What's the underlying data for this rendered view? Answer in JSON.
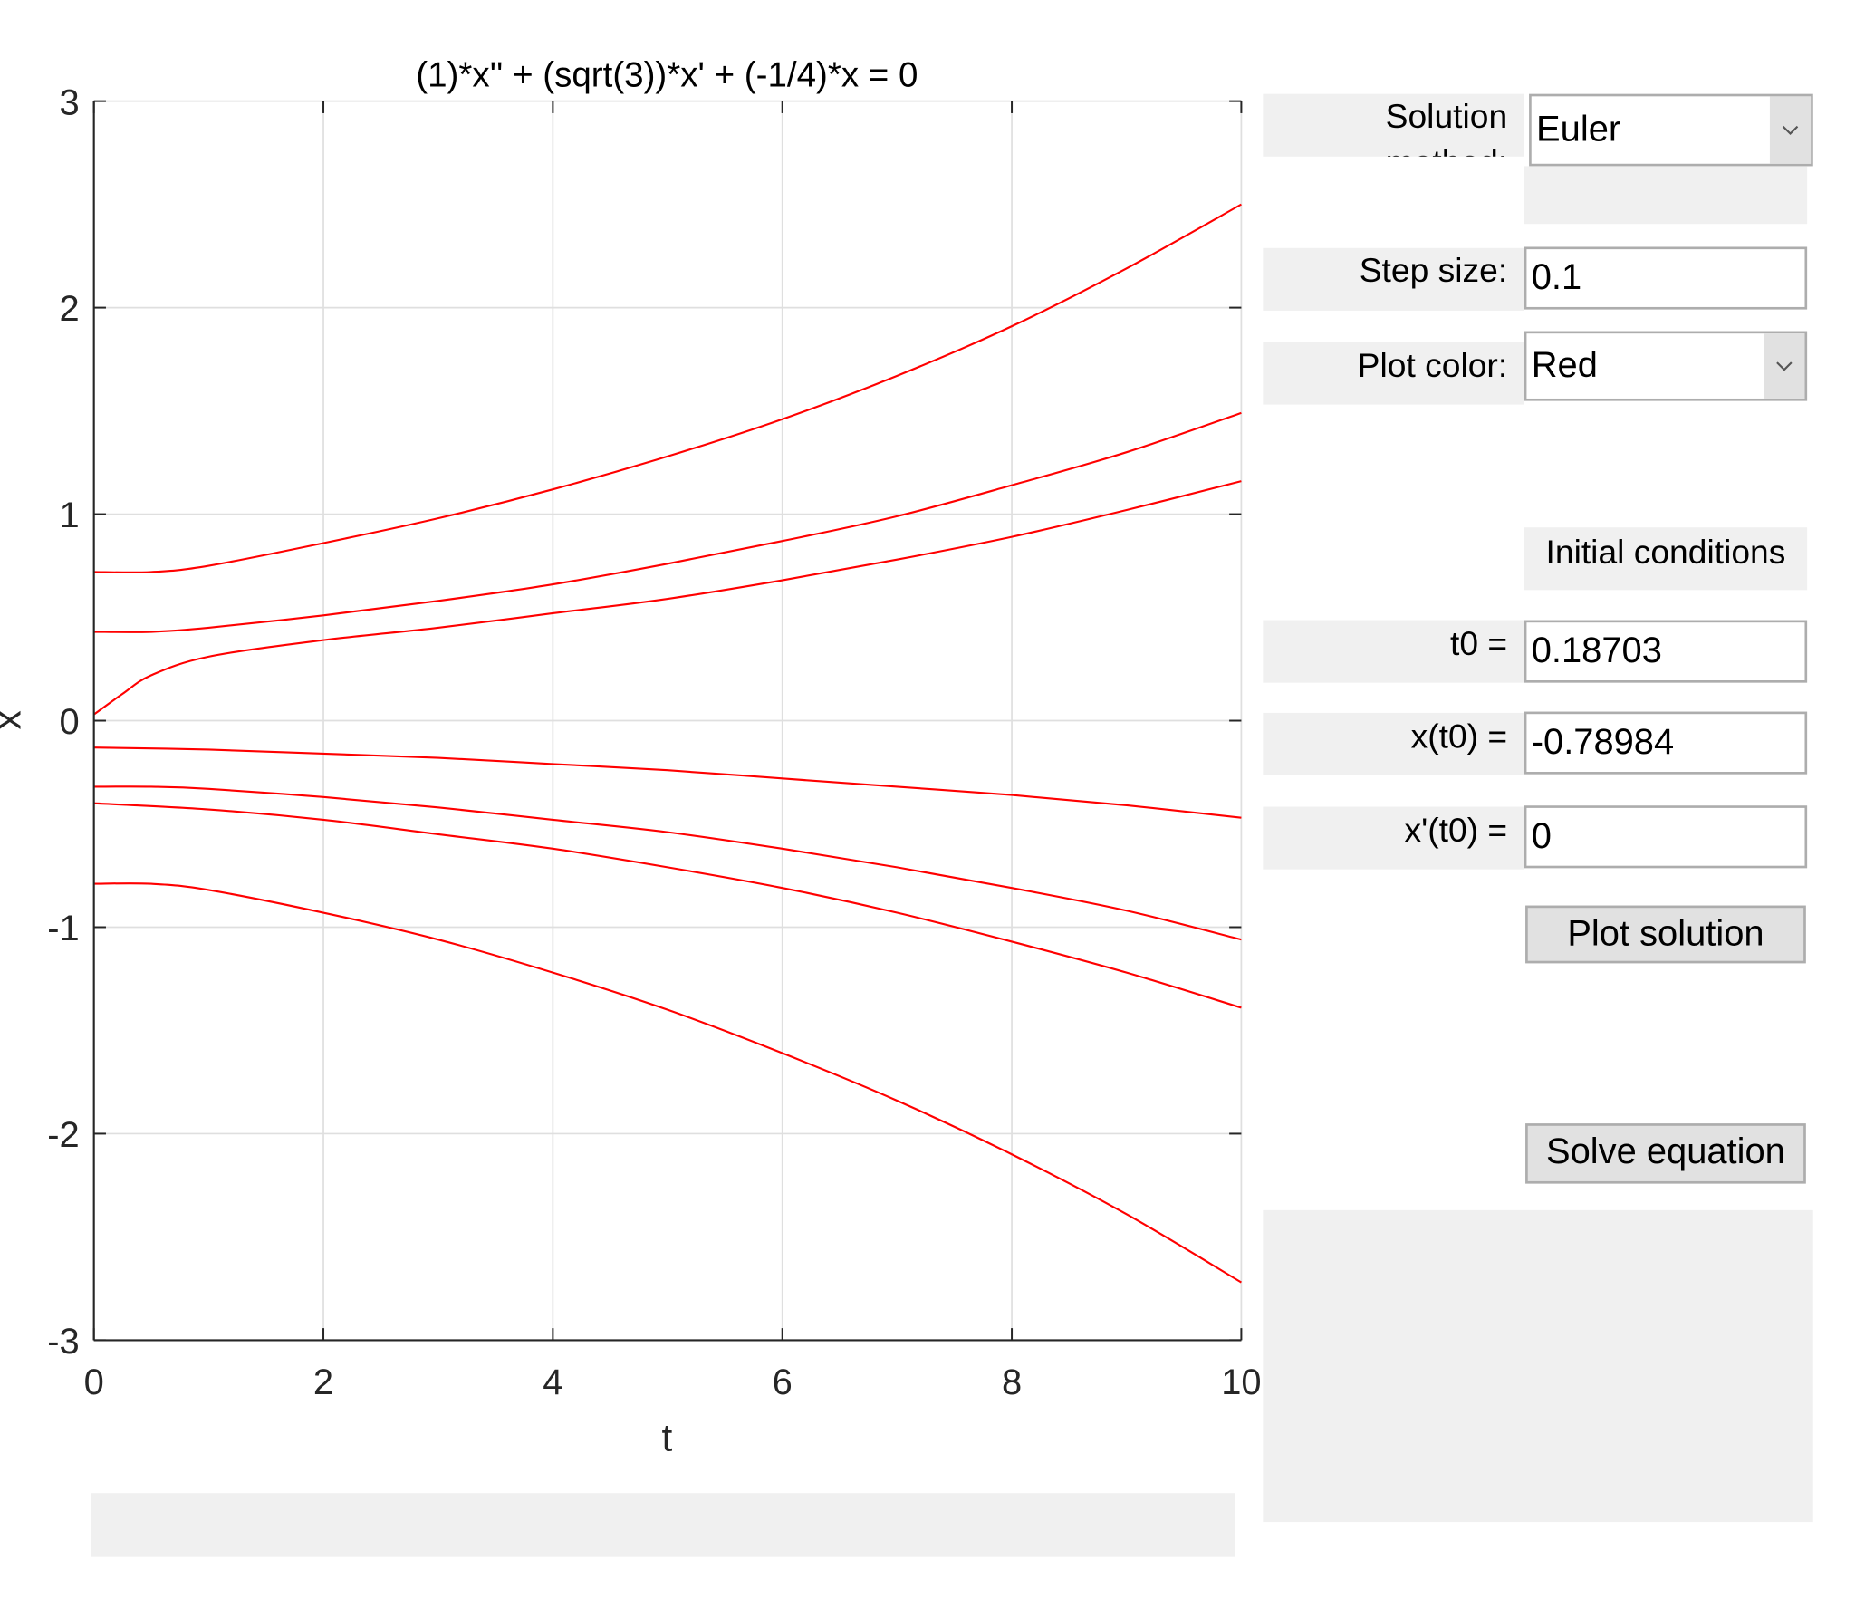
{
  "controls": {
    "solution_method_label": "Solution method:",
    "solution_method_value": "Euler",
    "step_size_label": "Step size:",
    "step_size_value": "0.1",
    "plot_color_label": "Plot color:",
    "plot_color_value": "Red",
    "initial_conditions_label": "Initial conditions",
    "t0_label": "t0 =",
    "t0_value": "0.18703",
    "x_t0_label": "x(t0) =",
    "x_t0_value": "-0.78984",
    "xp_t0_label": "x'(t0) =",
    "xp_t0_value": "0",
    "plot_button": "Plot solution",
    "solve_button": "Solve equation"
  },
  "chart_data": {
    "type": "line",
    "title": "(1)*x'' + (sqrt(3))*x' + (-1/4)*x = 0",
    "xlabel": "t",
    "ylabel": "x",
    "xlim": [
      0,
      10
    ],
    "ylim": [
      -3,
      3
    ],
    "xticks": [
      "0",
      "2",
      "4",
      "6",
      "8",
      "10"
    ],
    "yticks": [
      "-3",
      "-2",
      "-1",
      "0",
      "1",
      "2",
      "3"
    ],
    "grid": true,
    "line_color": "#ff0000",
    "series": [
      {
        "x": [
          0,
          0.5,
          1,
          2,
          3,
          4,
          5,
          6,
          7,
          8,
          9,
          10
        ],
        "y": [
          0.72,
          0.72,
          0.75,
          0.86,
          0.98,
          1.12,
          1.28,
          1.46,
          1.67,
          1.91,
          2.19,
          2.5
        ]
      },
      {
        "x": [
          0,
          0.5,
          1,
          2,
          3,
          4,
          5,
          6,
          7,
          8,
          9,
          10
        ],
        "y": [
          0.43,
          0.43,
          0.45,
          0.51,
          0.58,
          0.66,
          0.76,
          0.87,
          0.99,
          1.14,
          1.3,
          1.49
        ]
      },
      {
        "x": [
          0,
          0.25,
          0.5,
          1,
          2,
          3,
          4,
          5,
          6,
          7,
          8,
          9,
          10
        ],
        "y": [
          0.03,
          0.13,
          0.22,
          0.31,
          0.39,
          0.45,
          0.52,
          0.59,
          0.68,
          0.78,
          0.89,
          1.02,
          1.16
        ]
      },
      {
        "x": [
          0,
          1,
          2,
          3,
          4,
          5,
          6,
          7,
          8,
          9,
          10
        ],
        "y": [
          -0.13,
          -0.14,
          -0.16,
          -0.18,
          -0.21,
          -0.24,
          -0.28,
          -0.32,
          -0.36,
          -0.41,
          -0.47
        ]
      },
      {
        "x": [
          0,
          0.5,
          1,
          2,
          3,
          4,
          5,
          6,
          7,
          8,
          9,
          10
        ],
        "y": [
          -0.32,
          -0.32,
          -0.33,
          -0.37,
          -0.42,
          -0.48,
          -0.54,
          -0.62,
          -0.71,
          -0.81,
          -0.92,
          -1.06
        ]
      },
      {
        "x": [
          0,
          1,
          2,
          3,
          4,
          5,
          6,
          7,
          8,
          9,
          10
        ],
        "y": [
          -0.4,
          -0.43,
          -0.48,
          -0.55,
          -0.62,
          -0.71,
          -0.81,
          -0.93,
          -1.07,
          -1.22,
          -1.39
        ]
      },
      {
        "x": [
          0,
          0.5,
          1,
          2,
          3,
          4,
          5,
          6,
          7,
          8,
          9,
          10
        ],
        "y": [
          -0.79,
          -0.79,
          -0.82,
          -0.93,
          -1.06,
          -1.22,
          -1.4,
          -1.61,
          -1.84,
          -2.1,
          -2.39,
          -2.72
        ]
      }
    ]
  }
}
